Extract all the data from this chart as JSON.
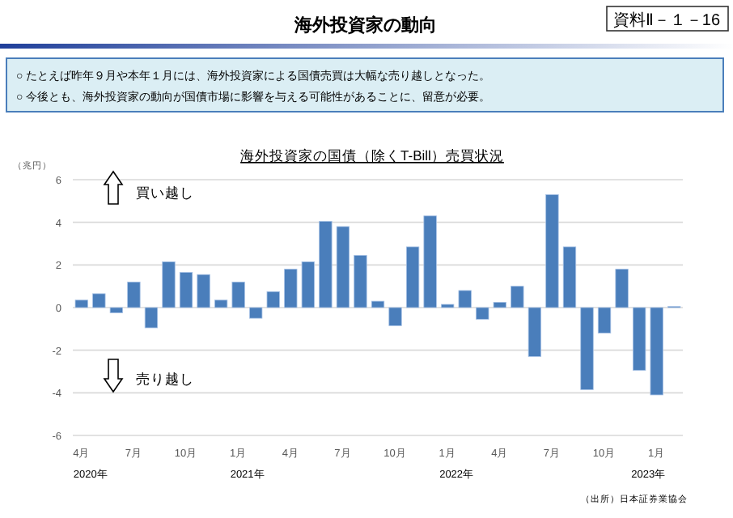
{
  "chart_data": {
    "type": "bar",
    "title": "海外投資家の国債（除くT-Bill）売買状況",
    "subtitle": "海外投資家の動向",
    "ylabel": "（兆円）",
    "annotations": [
      "資料Ⅱ－１－16",
      "○ たとえば昨年９月や本年１月には、海外投資家による国債売買は大幅な売り越しとなった。",
      "○ 今後とも、海外投資家の動向が国債市場に影響を与える可能性があることに、留意が必要。",
      "買い越し",
      "売り越し",
      "（出所）日本証券業協会"
    ],
    "categories": [
      "4月\n2020年",
      null,
      null,
      "7月",
      null,
      null,
      "10月",
      null,
      null,
      "1月\n2021年",
      null,
      null,
      "4月",
      null,
      null,
      "7月",
      null,
      null,
      "10月",
      null,
      null,
      "1月\n2022年",
      null,
      null,
      "4月",
      null,
      null,
      "7月",
      null,
      null,
      "10月",
      null,
      null,
      "1月\n2023年",
      null
    ],
    "series": [
      {
        "color": "#4a7ebb",
        "values": [
          0.35,
          0.65,
          -0.25,
          1.2,
          -0.95,
          2.15,
          1.65,
          1.55,
          0.35,
          1.2,
          -0.5,
          0.75,
          1.8,
          2.15,
          4.05,
          3.8,
          2.45,
          0.3,
          -0.85,
          2.85,
          4.3,
          0.15,
          0.8,
          -0.55,
          0.25,
          1.0,
          -2.3,
          5.3,
          2.85,
          -3.85,
          -1.2,
          1.8,
          -2.95,
          -4.1,
          0.05
        ]
      }
    ],
    "ylim": [
      -6,
      6
    ],
    "yticks": [
      -6,
      -4,
      -2,
      0,
      2,
      4,
      6
    ],
    "grid": "y"
  }
}
